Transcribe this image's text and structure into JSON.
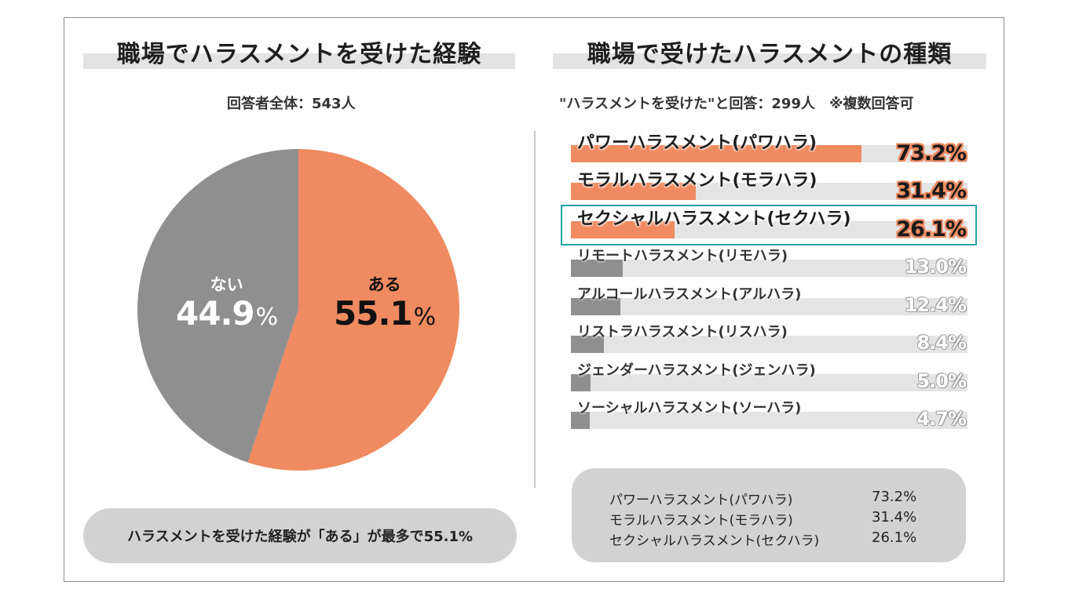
{
  "left_panel": {
    "title": "職場でハラスメントを受けた経験",
    "subtitle": "回答者全体：543人",
    "summary": "ハラスメントを受けた経験が「ある」が最多で55.1%"
  },
  "right_panel": {
    "title": "職場で受けたハラスメントの種類",
    "subtitle": "\"ハラスメントを受けた\"と回答：299人　※複数回答可",
    "summary": [
      {
        "name": "パワーハラスメント(パワハラ)",
        "value": "73.2%"
      },
      {
        "name": "モラルハラスメント(モラハラ)",
        "value": "31.4%"
      },
      {
        "name": "セクシャルハラスメント(セクハラ)",
        "value": "26.1%"
      }
    ]
  },
  "colors": {
    "accent": "#f08a60",
    "gray": "#8f8f8f",
    "track": "#e4e4e4",
    "highlight": "#20a3a8"
  },
  "chart_data": [
    {
      "type": "pie",
      "title": "職場でハラスメントを受けた経験",
      "slices": [
        {
          "label": "ある",
          "value": 55.1,
          "display": "55.1",
          "unit": "%",
          "color": "#f08a60"
        },
        {
          "label": "ない",
          "value": 44.9,
          "display": "44.9",
          "unit": "%",
          "color": "#8f8f8f"
        }
      ]
    },
    {
      "type": "bar",
      "orientation": "horizontal",
      "title": "職場で受けたハラスメントの種類",
      "xlim": [
        0,
        100
      ],
      "categories": [
        "パワーハラスメント(パワハラ)",
        "モラルハラスメント(モラハラ)",
        "セクシャルハラスメント(セクハラ)",
        "リモートハラスメント(リモハラ)",
        "アルコールハラスメント(アルハラ)",
        "リストラハラスメント(リスハラ)",
        "ジェンダーハラスメント(ジェンハラ)",
        "ソーシャルハラスメント(ソーハラ)"
      ],
      "values": [
        73.2,
        31.4,
        26.1,
        13.0,
        12.4,
        8.4,
        5.0,
        4.7
      ],
      "value_labels": [
        "73.2%",
        "31.4%",
        "26.1%",
        "13.0%",
        "12.4%",
        "8.4%",
        "5.0%",
        "4.7%"
      ]
    }
  ]
}
